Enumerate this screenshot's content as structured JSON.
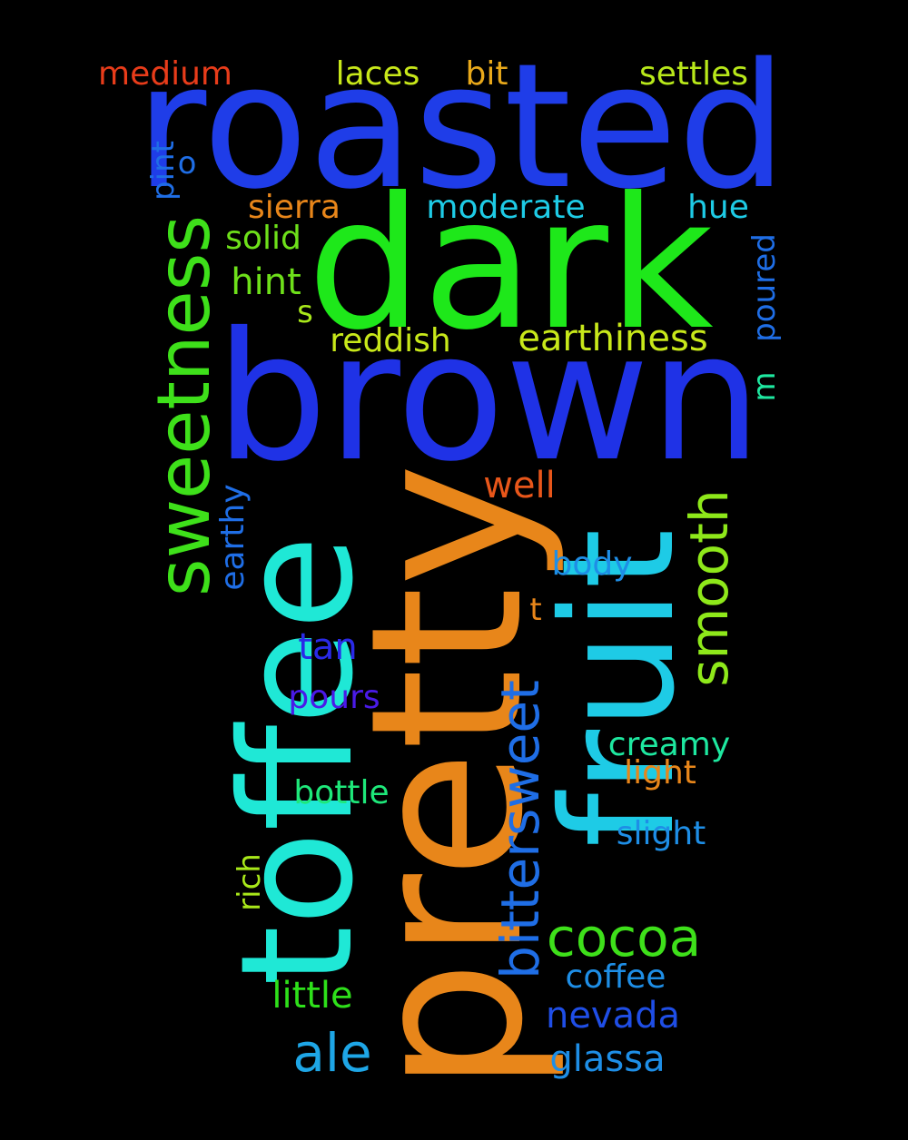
{
  "background": "#000000",
  "words": [
    {
      "text": "roasted",
      "color": "#1f3de8"
    },
    {
      "text": "dark",
      "color": "#1ee81a"
    },
    {
      "text": "brown",
      "color": "#1f32e6"
    },
    {
      "text": "pretty",
      "color": "#e8861a"
    },
    {
      "text": "toffee",
      "color": "#1fe8d6"
    },
    {
      "text": "fruit",
      "color": "#1ecbe6"
    },
    {
      "text": "sweetness",
      "color": "#3ee01a"
    },
    {
      "text": "bittersweet",
      "color": "#1f6ee6"
    },
    {
      "text": "smooth",
      "color": "#8ee81a"
    },
    {
      "text": "cocoa",
      "color": "#3ee01a"
    },
    {
      "text": "ale",
      "color": "#1ea6e6"
    },
    {
      "text": "earthiness",
      "color": "#c8e81a"
    },
    {
      "text": "medium",
      "color": "#e83c1a"
    },
    {
      "text": "laces",
      "color": "#c8e81a"
    },
    {
      "text": "bit",
      "color": "#e8a81a"
    },
    {
      "text": "settles",
      "color": "#b8e81a"
    },
    {
      "text": "sierra",
      "color": "#e8861a"
    },
    {
      "text": "moderate",
      "color": "#1ecbe6"
    },
    {
      "text": "hue",
      "color": "#1ecbe6"
    },
    {
      "text": "solid",
      "color": "#6ee01a"
    },
    {
      "text": "hint",
      "color": "#6ee01a"
    },
    {
      "text": "s",
      "color": "#a8e81a"
    },
    {
      "text": "reddish",
      "color": "#c8e81a"
    },
    {
      "text": "pint",
      "color": "#1f6ee6"
    },
    {
      "text": "o",
      "color": "#1f6ee6"
    },
    {
      "text": "poured",
      "color": "#1f6ee6"
    },
    {
      "text": "m",
      "color": "#1ee8a0"
    },
    {
      "text": "well",
      "color": "#e8561a"
    },
    {
      "text": "earthy",
      "color": "#1f6ee6"
    },
    {
      "text": "body",
      "color": "#1e8ee6"
    },
    {
      "text": "t",
      "color": "#e8861a"
    },
    {
      "text": "tan",
      "color": "#2a2ae8"
    },
    {
      "text": "pours",
      "color": "#4a1ae8"
    },
    {
      "text": "creamy",
      "color": "#1ee8a0"
    },
    {
      "text": "light",
      "color": "#e8861a"
    },
    {
      "text": "bottle",
      "color": "#1ee87a"
    },
    {
      "text": "slight",
      "color": "#1e8ee6"
    },
    {
      "text": "rich",
      "color": "#a8e81a"
    },
    {
      "text": "coffee",
      "color": "#1e8ee6"
    },
    {
      "text": "little",
      "color": "#2ee01a"
    },
    {
      "text": "nevada",
      "color": "#1f4ee6"
    },
    {
      "text": "glassa",
      "color": "#1e8ee6"
    }
  ]
}
